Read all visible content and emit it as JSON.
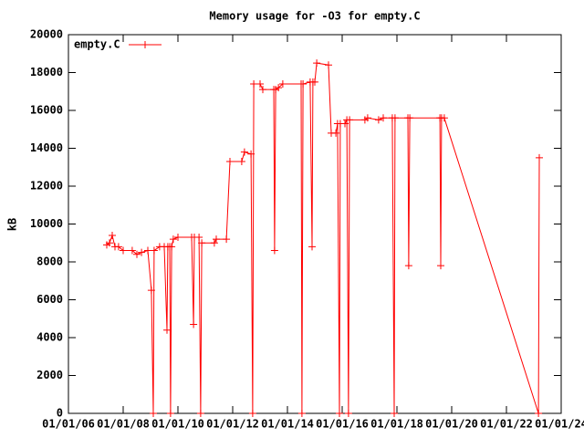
{
  "chart_data": {
    "type": "line",
    "title": "Memory usage for -O3 for empty.C",
    "y_label": "kB",
    "x": [
      2007.4,
      2007.5,
      2007.6,
      2007.7,
      2007.83,
      2008.0,
      2008.33,
      2008.5,
      2008.67,
      2008.9,
      2009.03,
      2009.1,
      2009.13,
      2009.33,
      2009.5,
      2009.6,
      2009.63,
      2009.7,
      2009.73,
      2009.77,
      2009.83,
      2010.0,
      2010.5,
      2010.57,
      2010.6,
      2010.77,
      2010.83,
      2010.87,
      2011.33,
      2011.4,
      2011.77,
      2011.9,
      2012.33,
      2012.43,
      2012.67,
      2012.73,
      2012.77,
      2013.0,
      2013.1,
      2013.5,
      2013.53,
      2013.57,
      2013.67,
      2013.83,
      2014.5,
      2014.53,
      2014.57,
      2014.83,
      2014.9,
      2014.93,
      2015.0,
      2015.07,
      2015.5,
      2015.6,
      2015.77,
      2015.83,
      2015.9,
      2015.93,
      2016.1,
      2016.17,
      2016.23,
      2016.27,
      2016.83,
      2016.93,
      2017.33,
      2017.5,
      2017.83,
      2017.9,
      2017.93,
      2018.4,
      2018.43,
      2018.47,
      2019.57,
      2019.6,
      2019.63,
      2019.73,
      2023.17,
      2023.2
    ],
    "series": [
      {
        "name": "empty.C",
        "color": "#ff0000",
        "values": [
          8900,
          9000,
          9400,
          8800,
          8800,
          8600,
          8600,
          8400,
          8500,
          8600,
          6500,
          0,
          8600,
          8800,
          8800,
          4400,
          8800,
          8800,
          0,
          8800,
          9200,
          9300,
          9300,
          4700,
          9300,
          9300,
          0,
          9000,
          9000,
          9200,
          9200,
          13300,
          13300,
          13800,
          13700,
          0,
          17400,
          17400,
          17100,
          17100,
          8600,
          17100,
          17200,
          17400,
          17400,
          0,
          17400,
          17500,
          8800,
          17500,
          17500,
          18500,
          18400,
          14800,
          14800,
          15300,
          0,
          15300,
          15300,
          15500,
          0,
          15500,
          15500,
          15600,
          15500,
          15600,
          15600,
          0,
          15600,
          15600,
          7800,
          15600,
          15600,
          7800,
          15600,
          15600,
          0,
          13500
        ]
      }
    ],
    "xlim": [
      2006,
      2024
    ],
    "xticks": [
      {
        "value": 2006,
        "label": "01/01/06"
      },
      {
        "value": 2008,
        "label": "01/01/08"
      },
      {
        "value": 2010,
        "label": "01/01/10"
      },
      {
        "value": 2012,
        "label": "01/01/12"
      },
      {
        "value": 2014,
        "label": "01/01/14"
      },
      {
        "value": 2016,
        "label": "01/01/16"
      },
      {
        "value": 2018,
        "label": "01/01/18"
      },
      {
        "value": 2020,
        "label": "01/01/20"
      },
      {
        "value": 2022,
        "label": "01/01/22"
      },
      {
        "value": 2024,
        "label": "01/01/24"
      }
    ],
    "ylim": [
      0,
      20000
    ],
    "yticks": [
      0,
      2000,
      4000,
      6000,
      8000,
      10000,
      12000,
      14000,
      16000,
      18000,
      20000
    ],
    "legend": "top-left"
  }
}
